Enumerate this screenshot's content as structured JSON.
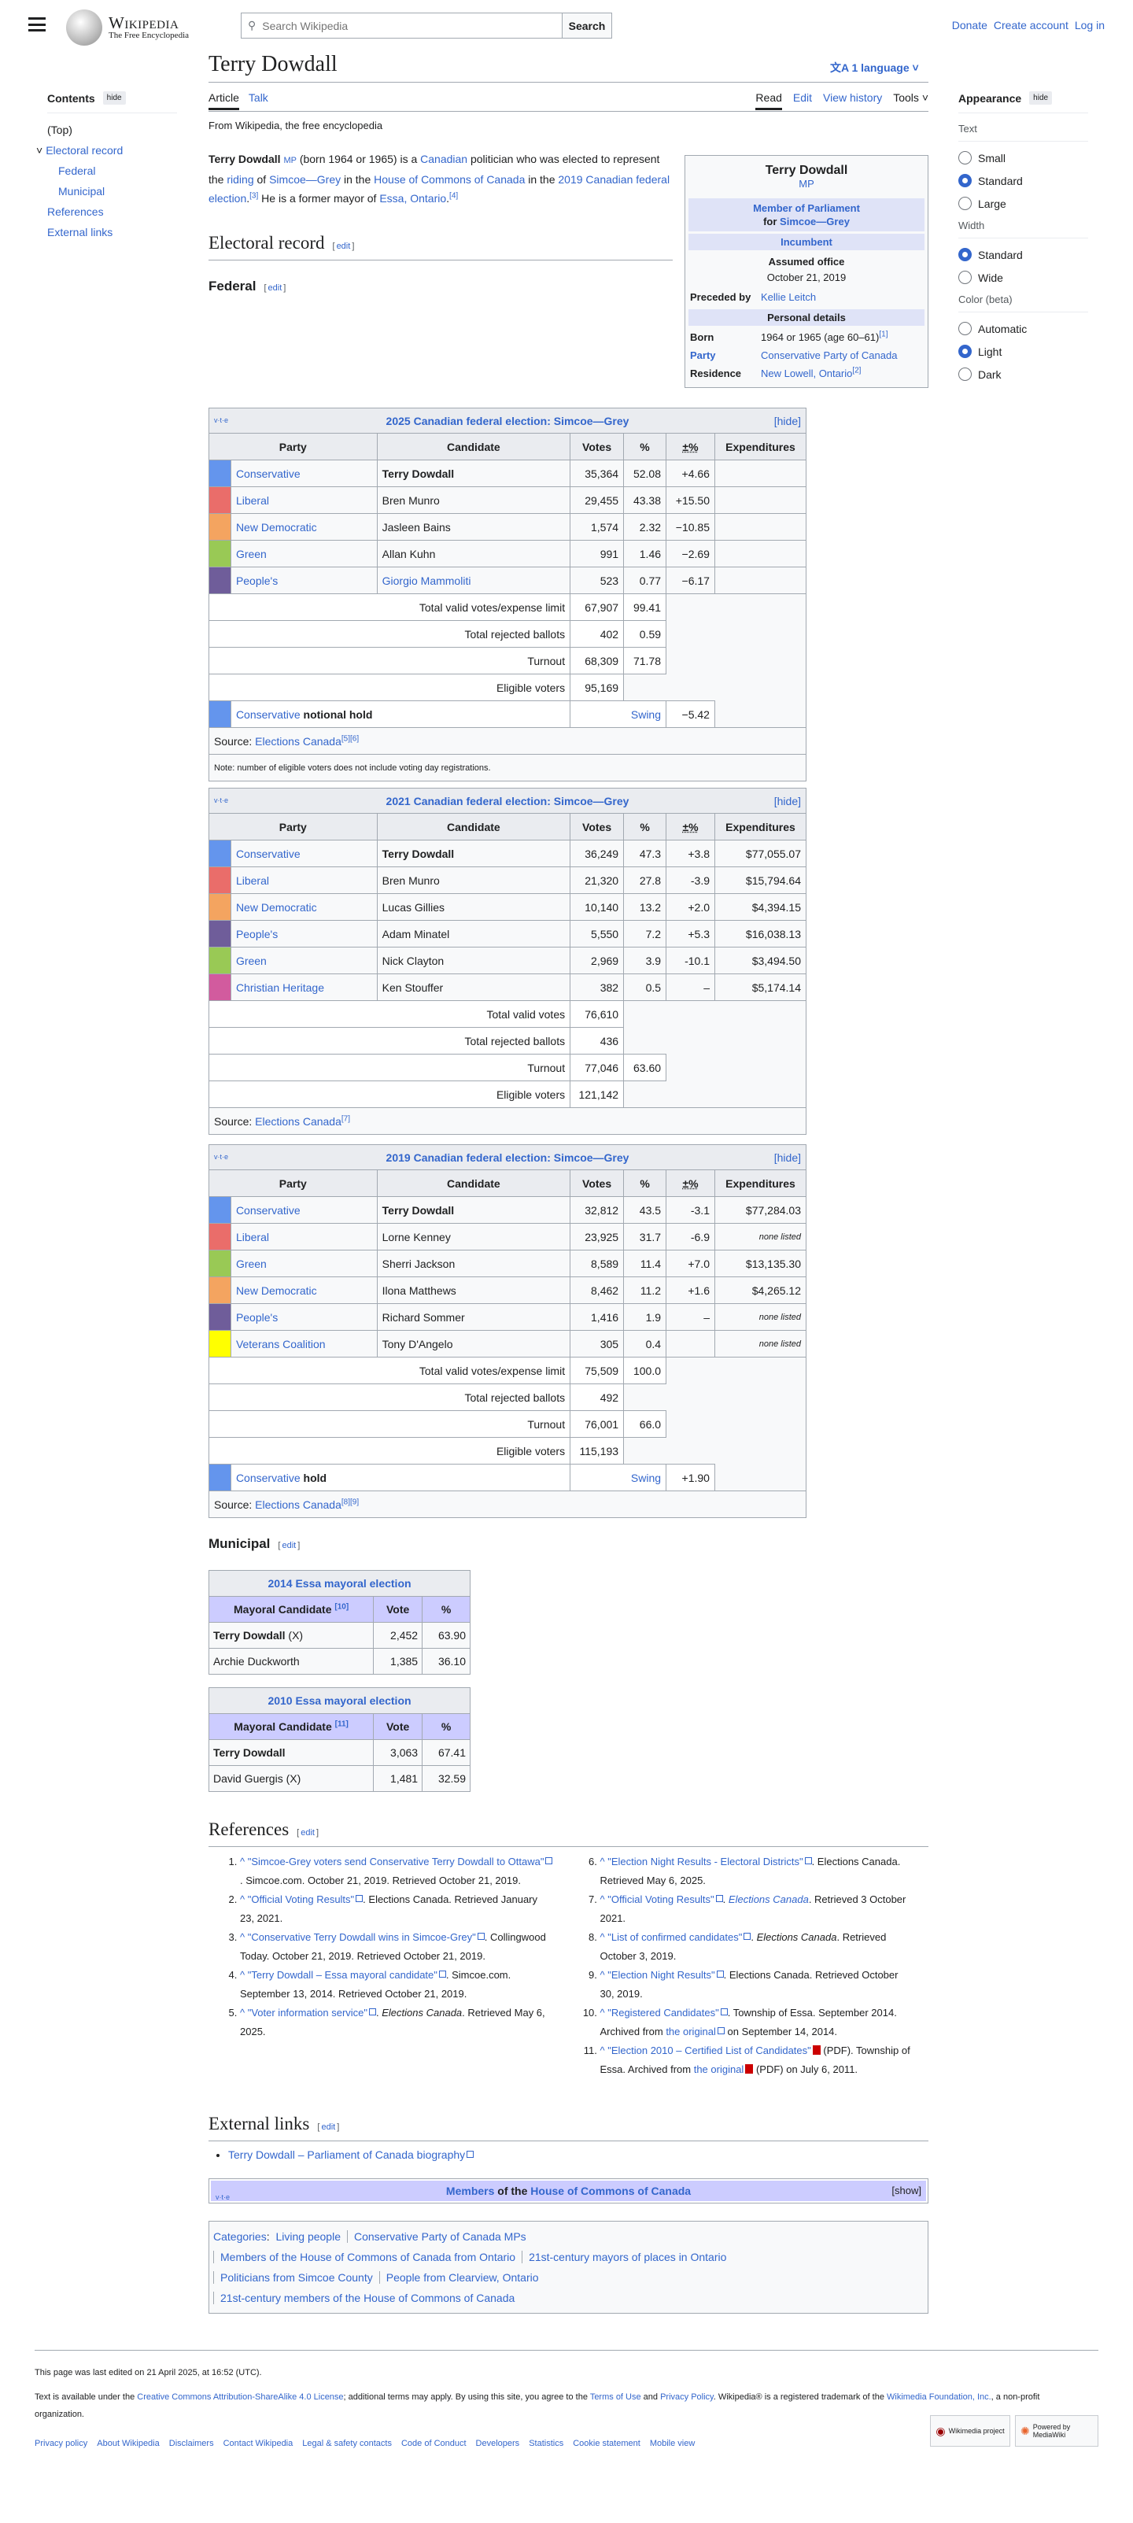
{
  "header": {
    "logo_wordmark": "Wikipedia",
    "logo_tagline": "The Free Encyclopedia",
    "search_placeholder": "Search Wikipedia",
    "search_button": "Search",
    "links": [
      "Donate",
      "Create account",
      "Log in"
    ]
  },
  "page": {
    "title": "Terry Dowdall",
    "languages": "1 language",
    "tabs_left": [
      "Article",
      "Talk"
    ],
    "tabs_right": [
      "Read",
      "Edit",
      "View history",
      "Tools"
    ],
    "from": "From Wikipedia, the free encyclopedia"
  },
  "toc": {
    "title": "Contents",
    "hide": "hide",
    "items": [
      {
        "label": "(Top)",
        "level": 0,
        "link": false
      },
      {
        "label": "Electoral record",
        "level": 0,
        "link": true,
        "chevron": true
      },
      {
        "label": "Federal",
        "level": 1,
        "link": true
      },
      {
        "label": "Municipal",
        "level": 1,
        "link": true
      },
      {
        "label": "References",
        "level": 0,
        "link": true
      },
      {
        "label": "External links",
        "level": 0,
        "link": true
      }
    ]
  },
  "appearance": {
    "title": "Appearance",
    "hide": "hide",
    "groups": [
      {
        "label": "Text",
        "options": [
          "Small",
          "Standard",
          "Large"
        ],
        "selected": "Standard"
      },
      {
        "label": "Width",
        "options": [
          "Standard",
          "Wide"
        ],
        "selected": "Standard"
      },
      {
        "label": "Color (beta)",
        "options": [
          "Automatic",
          "Light",
          "Dark"
        ],
        "selected": "Light"
      }
    ]
  },
  "intro": [
    {
      "t": "Terry Dowdall",
      "b": true
    },
    {
      "t": " "
    },
    {
      "t": "MP",
      "l": true,
      "small": true
    },
    {
      "t": " (born 1964 or 1965) is a "
    },
    {
      "t": "Canadian",
      "l": true
    },
    {
      "t": " politician who was elected to represent the "
    },
    {
      "t": "riding",
      "l": true
    },
    {
      "t": " of "
    },
    {
      "t": "Simcoe—Grey",
      "l": true
    },
    {
      "t": " in the "
    },
    {
      "t": "House of Commons of Canada",
      "l": true
    },
    {
      "t": " in the "
    },
    {
      "t": "2019 Canadian federal election",
      "l": true
    },
    {
      "t": ".",
      "sup": "[3]"
    },
    {
      "t": " He is a former mayor of "
    },
    {
      "t": "Essa, Ontario",
      "l": true
    },
    {
      "t": ".",
      "sup": "[4]"
    }
  ],
  "infobox": {
    "name": "Terry Dowdall",
    "suffix": "MP",
    "office": "Member of Parliament",
    "office_for": "for",
    "riding": "Simcoe—Grey",
    "incumbent": "Incumbent",
    "assumed_label": "Assumed office",
    "assumed_date": "October 21, 2019",
    "preceded_label": "Preceded by",
    "preceded": "Kellie Leitch",
    "personal": "Personal details",
    "born_label": "Born",
    "born": "1964 or 1965 (age 60–61)",
    "born_ref": "[1]",
    "party_label": "Party",
    "party": "Conservative Party of Canada",
    "residence_label": "Residence",
    "residence": "New Lowell, Ontario",
    "residence_ref": "[2]"
  },
  "sections": {
    "electoral": "Electoral record",
    "federal": "Federal",
    "municipal": "Municipal",
    "references": "References",
    "external": "External links",
    "edit": "edit"
  },
  "federal_tables": [
    {
      "title": "2025 Canadian federal election: Simcoe—Grey",
      "vte": "v·t·e",
      "hide": "[hide]",
      "headers": [
        "Party",
        "Candidate",
        "Votes",
        "%",
        "±%",
        "Expenditures"
      ],
      "rows": [
        {
          "party": "Conservative",
          "color": "#6495ED",
          "candidate": "Terry Dowdall",
          "bold": true,
          "votes": "35,364",
          "pct": "52.08",
          "chg": "+4.66",
          "exp": ""
        },
        {
          "party": "Liberal",
          "color": "#EA6D6A",
          "candidate": "Bren Munro",
          "votes": "29,455",
          "pct": "43.38",
          "chg": "+15.50",
          "exp": ""
        },
        {
          "party": "New Democratic",
          "color": "#F4A460",
          "candidate": "Jasleen Bains",
          "votes": "1,574",
          "pct": "2.32",
          "chg": "−10.85",
          "exp": ""
        },
        {
          "party": "Green",
          "color": "#99C955",
          "candidate": "Allan Kuhn",
          "votes": "991",
          "pct": "1.46",
          "chg": "−2.69",
          "exp": ""
        },
        {
          "party": "People's",
          "color": "#6F5D9A",
          "candidate": "Giorgio Mammoliti",
          "cand_link": true,
          "votes": "523",
          "pct": "0.77",
          "chg": "−6.17",
          "exp": ""
        }
      ],
      "totals": [
        {
          "label": "Total valid votes/expense limit",
          "votes": "67,907",
          "pct": "99.41"
        },
        {
          "label": "Total rejected ballots",
          "votes": "402",
          "pct": "0.59"
        },
        {
          "label": "Turnout",
          "votes": "68,309",
          "pct": "71.78"
        },
        {
          "label": "Eligible voters",
          "votes": "95,169"
        }
      ],
      "hold": {
        "party": "Conservative",
        "color": "#6495ED",
        "text": "notional hold",
        "swing": "Swing",
        "value": "−5.42"
      },
      "source": "Source: ",
      "source_link": "Elections Canada",
      "source_ref": "[5][6]",
      "note": "Note: number of eligible voters does not include voting day registrations."
    },
    {
      "title": "2021 Canadian federal election: Simcoe—Grey",
      "vte": "v·t·e",
      "hide": "[hide]",
      "headers": [
        "Party",
        "Candidate",
        "Votes",
        "%",
        "±%",
        "Expenditures"
      ],
      "rows": [
        {
          "party": "Conservative",
          "color": "#6495ED",
          "candidate": "Terry Dowdall",
          "bold": true,
          "votes": "36,249",
          "pct": "47.3",
          "chg": "+3.8",
          "exp": "$77,055.07"
        },
        {
          "party": "Liberal",
          "color": "#EA6D6A",
          "candidate": "Bren Munro",
          "votes": "21,320",
          "pct": "27.8",
          "chg": "-3.9",
          "exp": "$15,794.64"
        },
        {
          "party": "New Democratic",
          "color": "#F4A460",
          "candidate": "Lucas Gillies",
          "votes": "10,140",
          "pct": "13.2",
          "chg": "+2.0",
          "exp": "$4,394.15"
        },
        {
          "party": "People's",
          "color": "#6F5D9A",
          "candidate": "Adam Minatel",
          "votes": "5,550",
          "pct": "7.2",
          "chg": "+5.3",
          "exp": "$16,038.13"
        },
        {
          "party": "Green",
          "color": "#99C955",
          "candidate": "Nick Clayton",
          "votes": "2,969",
          "pct": "3.9",
          "chg": "-10.1",
          "exp": "$3,494.50"
        },
        {
          "party": "Christian Heritage",
          "color": "#D25B9E",
          "candidate": "Ken Stouffer",
          "votes": "382",
          "pct": "0.5",
          "chg": "–",
          "exp": "$5,174.14"
        }
      ],
      "totals": [
        {
          "label": "Total valid votes",
          "votes": "76,610"
        },
        {
          "label": "Total rejected ballots",
          "votes": "436"
        },
        {
          "label": "Turnout",
          "votes": "77,046",
          "pct": "63.60"
        },
        {
          "label": "Eligible voters",
          "votes": "121,142"
        }
      ],
      "source": "Source: ",
      "source_link": "Elections Canada",
      "source_ref": "[7]"
    },
    {
      "title": "2019 Canadian federal election: Simcoe—Grey",
      "vte": "v·t·e",
      "hide": "[hide]",
      "headers": [
        "Party",
        "Candidate",
        "Votes",
        "%",
        "±%",
        "Expenditures"
      ],
      "rows": [
        {
          "party": "Conservative",
          "color": "#6495ED",
          "candidate": "Terry Dowdall",
          "bold": true,
          "votes": "32,812",
          "pct": "43.5",
          "chg": "-3.1",
          "exp": "$77,284.03"
        },
        {
          "party": "Liberal",
          "color": "#EA6D6A",
          "candidate": "Lorne Kenney",
          "votes": "23,925",
          "pct": "31.7",
          "chg": "-6.9",
          "exp": "none listed",
          "exp_italic": true
        },
        {
          "party": "Green",
          "color": "#99C955",
          "candidate": "Sherri Jackson",
          "votes": "8,589",
          "pct": "11.4",
          "chg": "+7.0",
          "exp": "$13,135.30"
        },
        {
          "party": "New Democratic",
          "color": "#F4A460",
          "candidate": "Ilona Matthews",
          "votes": "8,462",
          "pct": "11.2",
          "chg": "+1.6",
          "exp": "$4,265.12"
        },
        {
          "party": "People's",
          "color": "#6F5D9A",
          "candidate": "Richard Sommer",
          "votes": "1,416",
          "pct": "1.9",
          "chg": "–",
          "exp": "none listed",
          "exp_italic": true
        },
        {
          "party": "Veterans Coalition",
          "color": "#FFFF00",
          "candidate": "Tony D'Angelo",
          "votes": "305",
          "pct": "0.4",
          "chg": "",
          "exp": "none listed",
          "exp_italic": true
        }
      ],
      "totals": [
        {
          "label": "Total valid votes/expense limit",
          "votes": "75,509",
          "pct": "100.0"
        },
        {
          "label": "Total rejected ballots",
          "votes": "492"
        },
        {
          "label": "Turnout",
          "votes": "76,001",
          "pct": "66.0"
        },
        {
          "label": "Eligible voters",
          "votes": "115,193"
        }
      ],
      "hold": {
        "party": "Conservative",
        "color": "#6495ED",
        "text": "hold",
        "swing": "Swing",
        "value": "+1.90"
      },
      "source": "Source: ",
      "source_link": "Elections Canada",
      "source_ref": "[8][9]"
    }
  ],
  "municipal_tables": [
    {
      "title": "2014 Essa mayoral election",
      "headers": [
        "Mayoral Candidate",
        "Vote",
        "%"
      ],
      "ref": "[10]",
      "rows": [
        {
          "name": "Terry Dowdall",
          "bold": true,
          "suffix": " (X)",
          "vote": "2,452",
          "pct": "63.90"
        },
        {
          "name": "Archie Duckworth",
          "vote": "1,385",
          "pct": "36.10"
        }
      ]
    },
    {
      "title": "2010 Essa mayoral election",
      "headers": [
        "Mayoral Candidate",
        "Vote",
        "%"
      ],
      "ref": "[11]",
      "rows": [
        {
          "name": "Terry Dowdall",
          "bold": true,
          "vote": "3,063",
          "pct": "67.41"
        },
        {
          "name": "David Guergis (X)",
          "vote": "1,481",
          "pct": "32.59"
        }
      ]
    }
  ],
  "references": [
    [
      {
        "t": "^ ",
        "l": true
      },
      {
        "t": "\"Simcoe-Grey voters send Conservative Terry Dowdall to Ottawa\"",
        "l": true,
        "ext": true
      },
      {
        "t": ". Simcoe.com. October 21, 2019. Retrieved October 21, 2019."
      }
    ],
    [
      {
        "t": "^ ",
        "l": true
      },
      {
        "t": "\"Official Voting Results\"",
        "l": true,
        "ext": true
      },
      {
        "t": ". Elections Canada. Retrieved January 23, 2021."
      }
    ],
    [
      {
        "t": "^ ",
        "l": true
      },
      {
        "t": "\"Conservative Terry Dowdall wins in Simcoe-Grey\"",
        "l": true,
        "ext": true
      },
      {
        "t": ". Collingwood Today. October 21, 2019. Retrieved October 21, 2019."
      }
    ],
    [
      {
        "t": "^ ",
        "l": true
      },
      {
        "t": "\"Terry Dowdall – Essa mayoral candidate\"",
        "l": true,
        "ext": true
      },
      {
        "t": ". Simcoe.com. September 13, 2014. Retrieved October 21, 2019."
      }
    ],
    [
      {
        "t": "^ ",
        "l": true
      },
      {
        "t": "\"Voter information service\"",
        "l": true,
        "ext": true
      },
      {
        "t": ". "
      },
      {
        "t": "Elections Canada",
        "i": true
      },
      {
        "t": ". Retrieved May 6, 2025."
      }
    ],
    [
      {
        "t": "^ ",
        "l": true
      },
      {
        "t": "\"Election Night Results - Electoral Districts\"",
        "l": true,
        "ext": true
      },
      {
        "t": ". Elections Canada. Retrieved May 6, 2025."
      }
    ],
    [
      {
        "t": "^ ",
        "l": true
      },
      {
        "t": "\"Official Voting Results\"",
        "l": true,
        "ext": true
      },
      {
        "t": ". "
      },
      {
        "t": "Elections Canada",
        "i": true,
        "l": true
      },
      {
        "t": ". Retrieved 3 October 2021."
      }
    ],
    [
      {
        "t": "^ ",
        "l": true
      },
      {
        "t": "\"List of confirmed candidates\"",
        "l": true,
        "ext": true
      },
      {
        "t": ". "
      },
      {
        "t": "Elections Canada",
        "i": true
      },
      {
        "t": ". Retrieved October 3, 2019."
      }
    ],
    [
      {
        "t": "^ ",
        "l": true
      },
      {
        "t": "\"Election Night Results\"",
        "l": true,
        "ext": true
      },
      {
        "t": ". Elections Canada. Retrieved October 30, 2019."
      }
    ],
    [
      {
        "t": "^ ",
        "l": true
      },
      {
        "t": "\"Registered Candidates\"",
        "l": true,
        "ext": true
      },
      {
        "t": ". Township of Essa. September 2014. Archived from "
      },
      {
        "t": "the original",
        "l": true,
        "ext": true
      },
      {
        "t": " on September 14, 2014."
      }
    ],
    [
      {
        "t": "^ ",
        "l": true
      },
      {
        "t": "\"Election 2010 – Certified List of Candidates\"",
        "l": true,
        "pdf": true
      },
      {
        "t": " (PDF). Township of Essa. Archived from "
      },
      {
        "t": "the original",
        "l": true,
        "pdf": true
      },
      {
        "t": " (PDF) on July 6, 2011."
      }
    ]
  ],
  "external_links": [
    "Terry Dowdall – Parliament of Canada biography"
  ],
  "navbox": {
    "vte": "v·t·e",
    "a": "Members",
    "b": " of the ",
    "c": "House of Commons of Canada",
    "show": "[show]"
  },
  "categories": {
    "label": "Categories",
    "items": [
      "Living people",
      "Conservative Party of Canada MPs",
      "Members of the House of Commons of Canada from Ontario",
      "21st-century mayors of places in Ontario",
      "Politicians from Simcoe County",
      "People from Clearview, Ontario",
      "21st-century members of the House of Commons of Canada"
    ]
  },
  "footer": {
    "last_edited": "This page was last edited on 21 April 2025, at 16:52 (UTC).",
    "license": [
      {
        "t": "Text is available under the "
      },
      {
        "t": "Creative Commons Attribution-ShareAlike 4.0 License",
        "l": true
      },
      {
        "t": "; additional terms may apply. By using this site, you agree to the "
      },
      {
        "t": "Terms of Use",
        "l": true
      },
      {
        "t": " and "
      },
      {
        "t": "Privacy Policy",
        "l": true
      },
      {
        "t": ". Wikipedia® is a registered trademark of the "
      },
      {
        "t": "Wikimedia Foundation, Inc.",
        "l": true
      },
      {
        "t": ", a non-profit organization."
      }
    ],
    "links": [
      "Privacy policy",
      "About Wikipedia",
      "Disclaimers",
      "Contact Wikipedia",
      "Legal & safety contacts",
      "Code of Conduct",
      "Developers",
      "Statistics",
      "Cookie statement",
      "Mobile view"
    ],
    "badges": [
      "Wikimedia project",
      "Powered by MediaWiki"
    ]
  }
}
